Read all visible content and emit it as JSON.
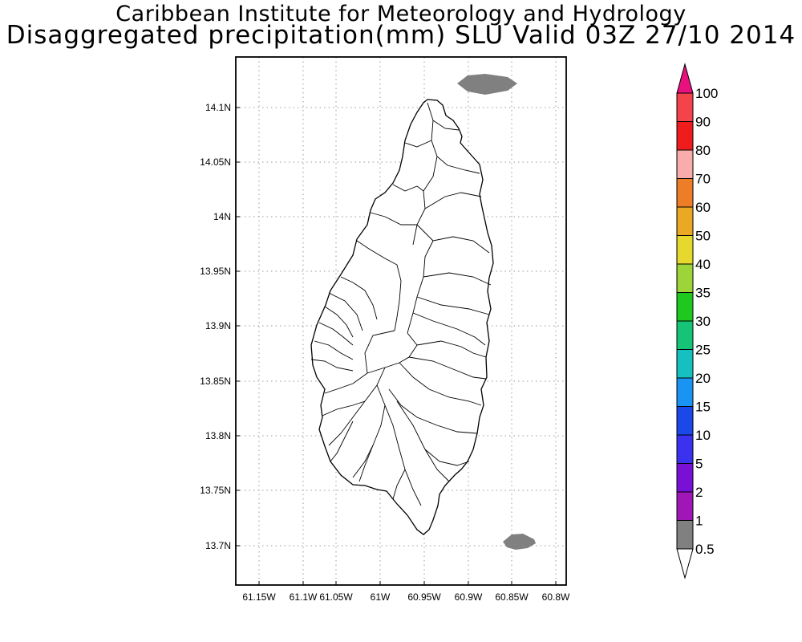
{
  "title": {
    "line1": "Caribbean Institute for Meteorology and Hydrology",
    "line2": "Disaggregated precipitation(mm) SLU Valid 03Z 27/10 2014"
  },
  "axes": {
    "x_ticks": [
      "61.15W",
      "61.1W",
      "61.05W",
      "61W",
      "60.95W",
      "60.9W",
      "60.85W",
      "60.8W"
    ],
    "y_ticks": [
      "14.1N",
      "14.05N",
      "14N",
      "13.95N",
      "13.9N",
      "13.85N",
      "13.8N",
      "13.75N",
      "13.7N"
    ],
    "x_range_deg": [
      -61.162,
      -60.787
    ],
    "y_range_deg": [
      13.662,
      14.147
    ]
  },
  "colorbar": {
    "labels": [
      "100",
      "90",
      "80",
      "70",
      "60",
      "50",
      "40",
      "35",
      "30",
      "25",
      "20",
      "15",
      "10",
      "5",
      "2",
      "1",
      "0.5"
    ],
    "colors": [
      "#e8117f",
      "#f5434b",
      "#ee1c1c",
      "#f9acac",
      "#ee7d27",
      "#eaa824",
      "#e7d82e",
      "#9cd43a",
      "#1ec81e",
      "#16c478",
      "#17c0c0",
      "#1a94f2",
      "#1a48e9",
      "#3a32ee",
      "#7a10d6",
      "#a016b6",
      "#808080",
      "#ffffff"
    ]
  },
  "precip_areas": [
    {
      "lon": -60.87,
      "lat": 14.122,
      "value_class": "0.5-1",
      "color": "#808080"
    },
    {
      "lon": -60.836,
      "lat": 13.703,
      "value_class": "0.5-1",
      "color": "#808080"
    }
  ]
}
